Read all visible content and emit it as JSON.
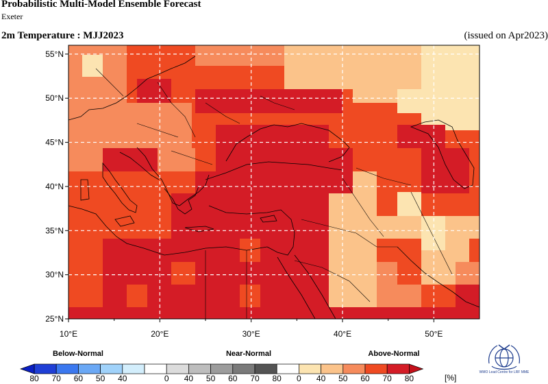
{
  "header": {
    "title": "Probabilistic Multi-Model Ensemble Forecast",
    "subtitle": "Exeter",
    "variable": "2m Temperature : MJJ2023",
    "issued": "(issued on Apr2023)"
  },
  "map": {
    "lon_range": [
      10,
      55
    ],
    "lat_range": [
      25,
      56
    ],
    "lon_ticks": [
      "10°E",
      "20°E",
      "30°E",
      "40°E",
      "50°E"
    ],
    "lat_ticks": [
      "25°N",
      "30°N",
      "35°N",
      "40°N",
      "45°N",
      "50°N",
      "55°N"
    ],
    "gridline_color": "#ffffff"
  },
  "legend": {
    "groups": [
      "Below-Normal",
      "Near-Normal",
      "Above-Normal"
    ],
    "below_ticks": [
      "80",
      "70",
      "60",
      "50",
      "40"
    ],
    "near_ticks": [
      "0",
      "40",
      "50",
      "60",
      "70",
      "80"
    ],
    "above_ticks": [
      "0",
      "40",
      "50",
      "60",
      "70",
      "80"
    ],
    "units": "[%]",
    "colors_below": [
      "#1f3fd6",
      "#3b78ef",
      "#6aa8f5",
      "#a0d2fa",
      "#d3eefc"
    ],
    "colors_near": [
      "#dcdcdc",
      "#bdbdbd",
      "#9c9c9c",
      "#7a7a7a",
      "#545454"
    ],
    "colors_above": [
      "#fce4b1",
      "#fbc38a",
      "#f68b5c",
      "#ef4a22",
      "#d41c26"
    ]
  },
  "logo": {
    "text": "WMO Lead Centre for LRF MME"
  }
}
